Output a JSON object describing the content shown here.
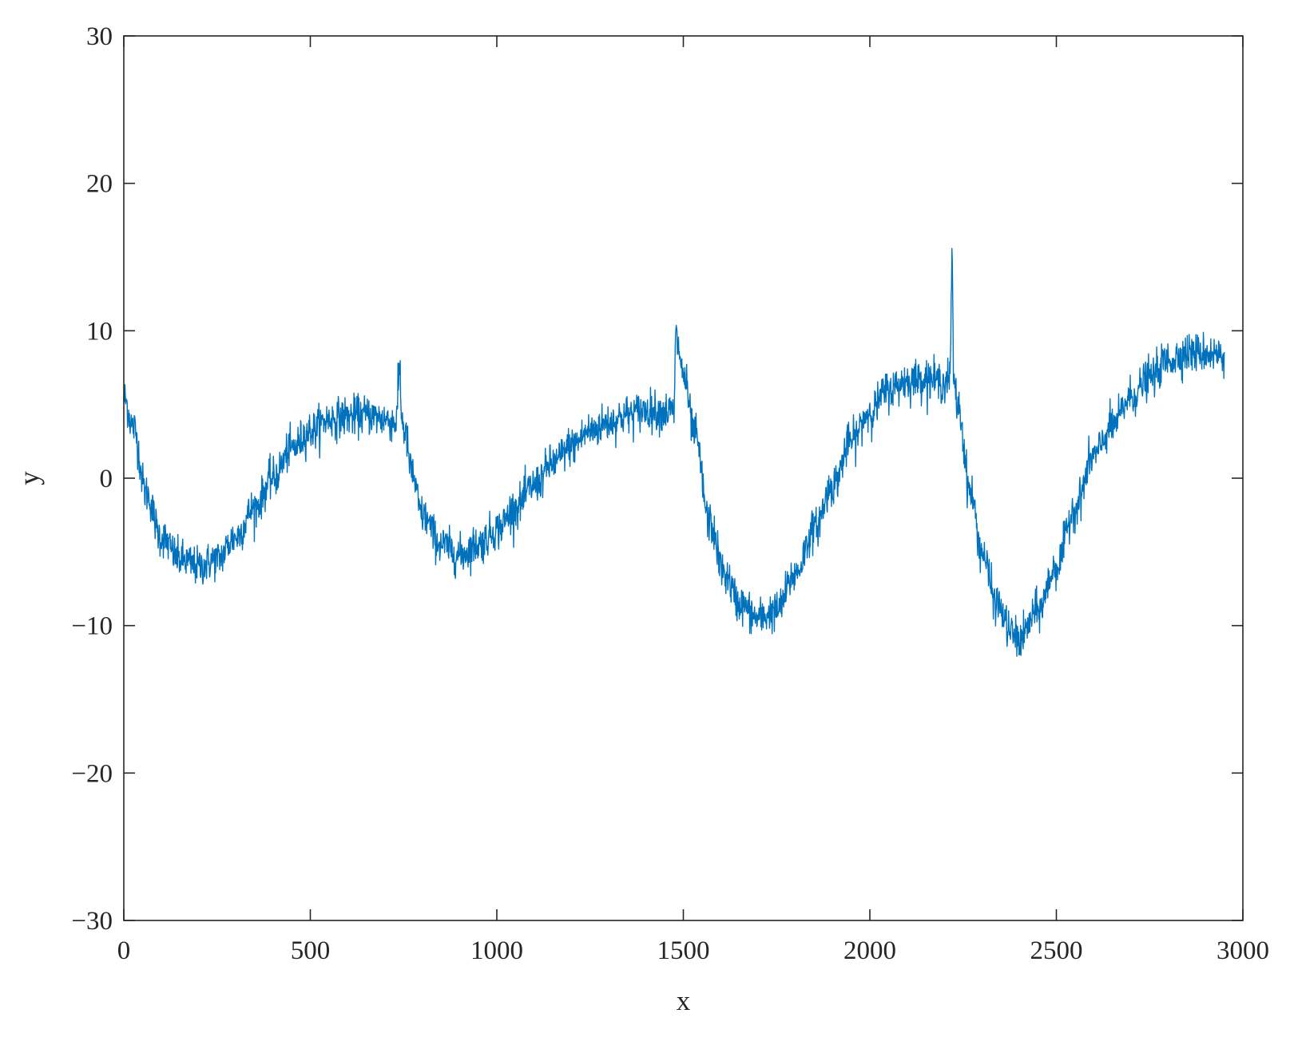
{
  "chart_data": {
    "type": "line",
    "title": "",
    "xlabel": "x",
    "ylabel": "y",
    "xlim": [
      0,
      3000
    ],
    "ylim": [
      -30,
      30
    ],
    "xticks": [
      0,
      500,
      1000,
      1500,
      2000,
      2500,
      3000
    ],
    "xtick_labels": [
      "0",
      "500",
      "1000",
      "1500",
      "2000",
      "2500",
      "3000"
    ],
    "yticks": [
      30,
      20,
      10,
      0,
      -10,
      -20,
      -30
    ],
    "ytick_labels": [
      "30",
      "20",
      "10",
      "0",
      "−10",
      "−20",
      "−30"
    ],
    "grid": false,
    "box": true,
    "legend": "none",
    "series": [
      {
        "color": "#0072BD",
        "noise_amplitude": 1.2,
        "x": [
          0,
          25,
          60,
          100,
          150,
          200,
          250,
          300,
          350,
          400,
          450,
          500,
          550,
          600,
          650,
          700,
          730,
          740,
          745,
          755,
          770,
          800,
          850,
          900,
          950,
          1000,
          1050,
          1100,
          1150,
          1200,
          1250,
          1300,
          1350,
          1400,
          1450,
          1475,
          1480,
          1485,
          1500,
          1530,
          1570,
          1610,
          1650,
          1700,
          1750,
          1800,
          1850,
          1900,
          1950,
          2000,
          2050,
          2100,
          2150,
          2200,
          2215,
          2220,
          2225,
          2235,
          2270,
          2300,
          2340,
          2380,
          2400,
          2450,
          2500,
          2550,
          2600,
          2650,
          2700,
          2750,
          2800,
          2850,
          2900,
          2950
        ],
        "y": [
          5.5,
          3.5,
          -1,
          -4,
          -5.5,
          -6,
          -5.5,
          -4,
          -2,
          0,
          2,
          3.2,
          4,
          4.2,
          4.3,
          4,
          3.8,
          7.5,
          4,
          3,
          0.5,
          -2.5,
          -4.5,
          -5.2,
          -4.5,
          -3.5,
          -2,
          -0.5,
          1,
          2.2,
          3.2,
          3.8,
          4.3,
          4.6,
          4.5,
          4.5,
          9.8,
          9,
          7,
          3,
          -3,
          -6.5,
          -8.5,
          -9.5,
          -9,
          -6.5,
          -3.5,
          -0.5,
          2.5,
          4.5,
          6,
          6.6,
          6.8,
          6.5,
          6.8,
          14.8,
          6.5,
          5,
          -1,
          -5,
          -8.5,
          -10.5,
          -11,
          -9,
          -6,
          -2,
          1.5,
          3.5,
          5.5,
          6.8,
          8,
          8.5,
          8.5,
          8.3
        ]
      }
    ]
  }
}
